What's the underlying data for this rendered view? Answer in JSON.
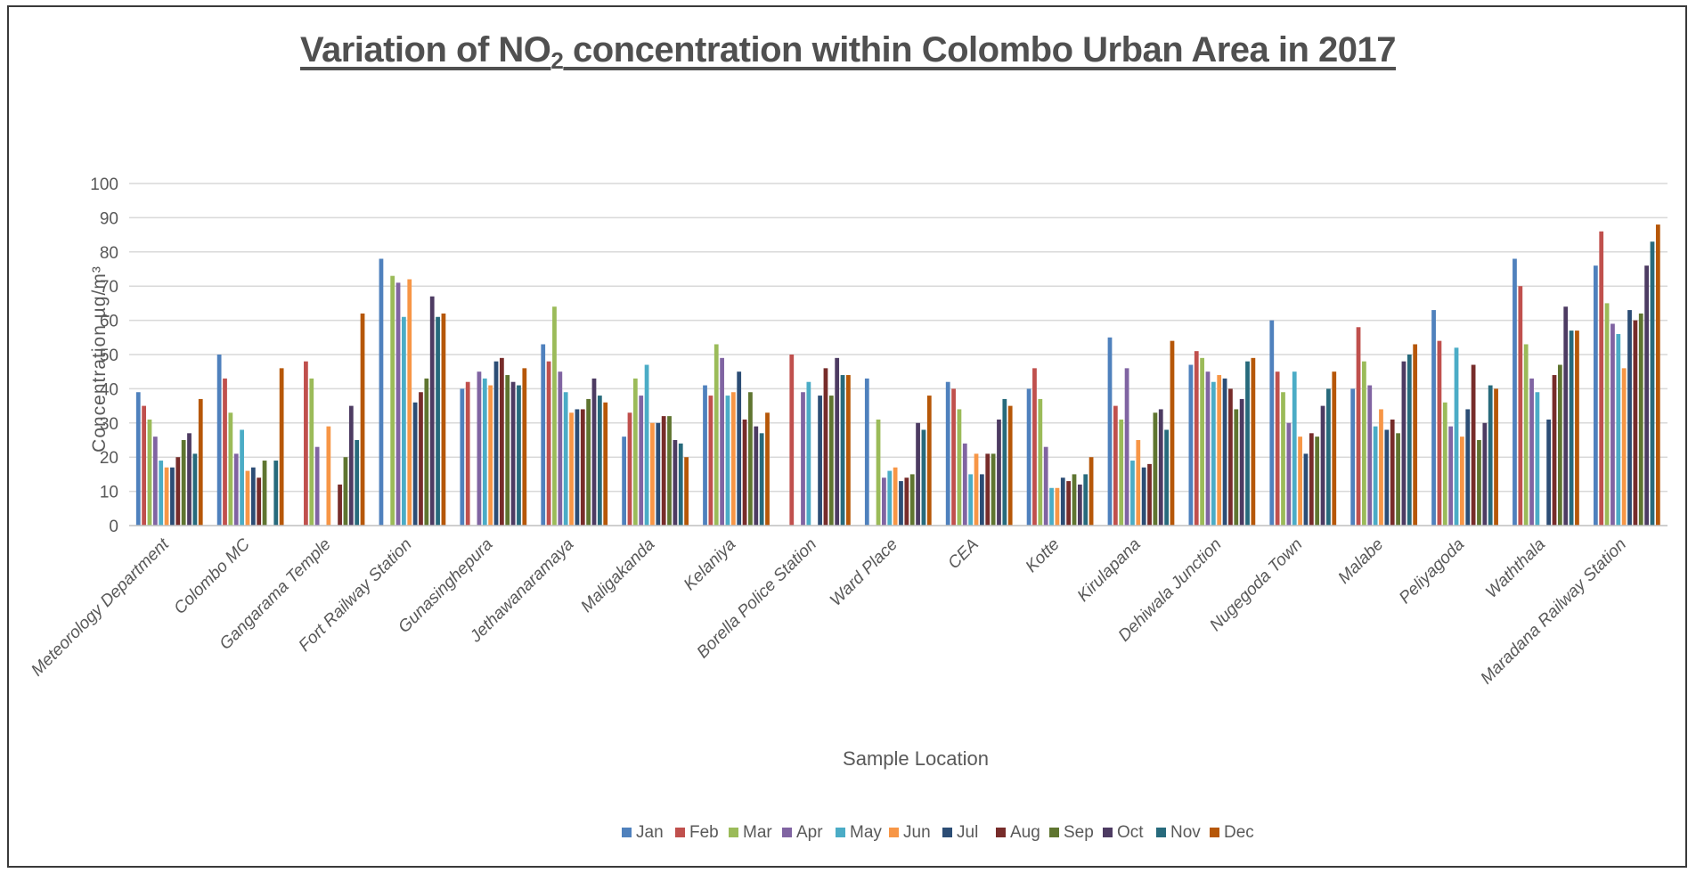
{
  "title": {
    "before": "Variation of NO",
    "sub": "2",
    "after": " concentration within Colombo Urban Area in 2017"
  },
  "chart_data": {
    "type": "bar",
    "xlabel": "Sample Location",
    "ylabel": "Concentration µg/m³",
    "ylim": [
      0,
      100
    ],
    "yticks": [
      "0",
      "10",
      "20",
      "30",
      "40",
      "50",
      "60",
      "70",
      "80",
      "90",
      "100"
    ],
    "grid": true,
    "legend_position": "bottom",
    "categories": [
      "Meteorology Department",
      "Colombo MC",
      "Gangarama Temple",
      "Fort Railway Station",
      "Gunasinghepura",
      "Jethawanaramaya",
      "Maligakanda",
      "Kelaniya",
      "Borella Police Station",
      "Ward Place",
      "CEA",
      "Kotte",
      "Kirulapana",
      "Dehiwala Junction",
      "Nugegoda Town",
      "Malabe",
      "Peliyagoda",
      "Waththala",
      "Maradana Railway Station"
    ],
    "series": [
      {
        "name": "Jan",
        "color": "#4F81BD",
        "values": [
          39,
          50,
          null,
          78,
          40,
          53,
          26,
          41,
          null,
          43,
          42,
          40,
          55,
          47,
          60,
          40,
          63,
          78,
          76
        ]
      },
      {
        "name": "Feb",
        "color": "#C0504D",
        "values": [
          35,
          43,
          48,
          null,
          42,
          48,
          33,
          38,
          50,
          null,
          40,
          46,
          35,
          51,
          45,
          58,
          54,
          70,
          86
        ]
      },
      {
        "name": "Mar",
        "color": "#9BBB59",
        "values": [
          31,
          33,
          43,
          73,
          null,
          64,
          43,
          53,
          null,
          31,
          34,
          37,
          31,
          49,
          39,
          48,
          36,
          53,
          65
        ]
      },
      {
        "name": "Apr",
        "color": "#8064A2",
        "values": [
          26,
          21,
          23,
          71,
          45,
          45,
          38,
          49,
          39,
          14,
          24,
          23,
          46,
          45,
          30,
          41,
          29,
          43,
          59
        ]
      },
      {
        "name": "May",
        "color": "#4BACC6",
        "values": [
          19,
          28,
          null,
          61,
          43,
          39,
          47,
          38,
          42,
          16,
          15,
          11,
          19,
          42,
          45,
          29,
          52,
          39,
          56
        ]
      },
      {
        "name": "Jun",
        "color": "#F79646",
        "values": [
          17,
          16,
          29,
          72,
          41,
          33,
          30,
          39,
          null,
          17,
          21,
          11,
          25,
          44,
          26,
          34,
          26,
          null,
          46
        ]
      },
      {
        "name": "Jul",
        "color": "#2C4D75",
        "values": [
          17,
          17,
          null,
          36,
          48,
          34,
          30,
          45,
          38,
          13,
          15,
          14,
          17,
          43,
          21,
          28,
          34,
          31,
          63
        ]
      },
      {
        "name": "Aug",
        "color": "#772C2A",
        "values": [
          20,
          14,
          12,
          39,
          49,
          34,
          32,
          31,
          46,
          14,
          21,
          13,
          18,
          40,
          27,
          31,
          47,
          44,
          60
        ]
      },
      {
        "name": "Sep",
        "color": "#5F7530",
        "values": [
          25,
          19,
          20,
          43,
          44,
          37,
          32,
          39,
          38,
          15,
          21,
          15,
          33,
          34,
          26,
          27,
          25,
          47,
          62
        ]
      },
      {
        "name": "Oct",
        "color": "#4D3B62",
        "values": [
          27,
          null,
          35,
          67,
          42,
          43,
          25,
          29,
          49,
          30,
          31,
          12,
          34,
          37,
          35,
          48,
          30,
          64,
          76
        ]
      },
      {
        "name": "Nov",
        "color": "#276A7C",
        "values": [
          21,
          19,
          25,
          61,
          41,
          38,
          24,
          27,
          44,
          28,
          37,
          15,
          28,
          48,
          40,
          50,
          41,
          57,
          83
        ]
      },
      {
        "name": "Dec",
        "color": "#B65708",
        "values": [
          37,
          46,
          62,
          62,
          46,
          36,
          20,
          33,
          44,
          38,
          35,
          20,
          54,
          49,
          45,
          53,
          40,
          57,
          88
        ]
      }
    ]
  }
}
